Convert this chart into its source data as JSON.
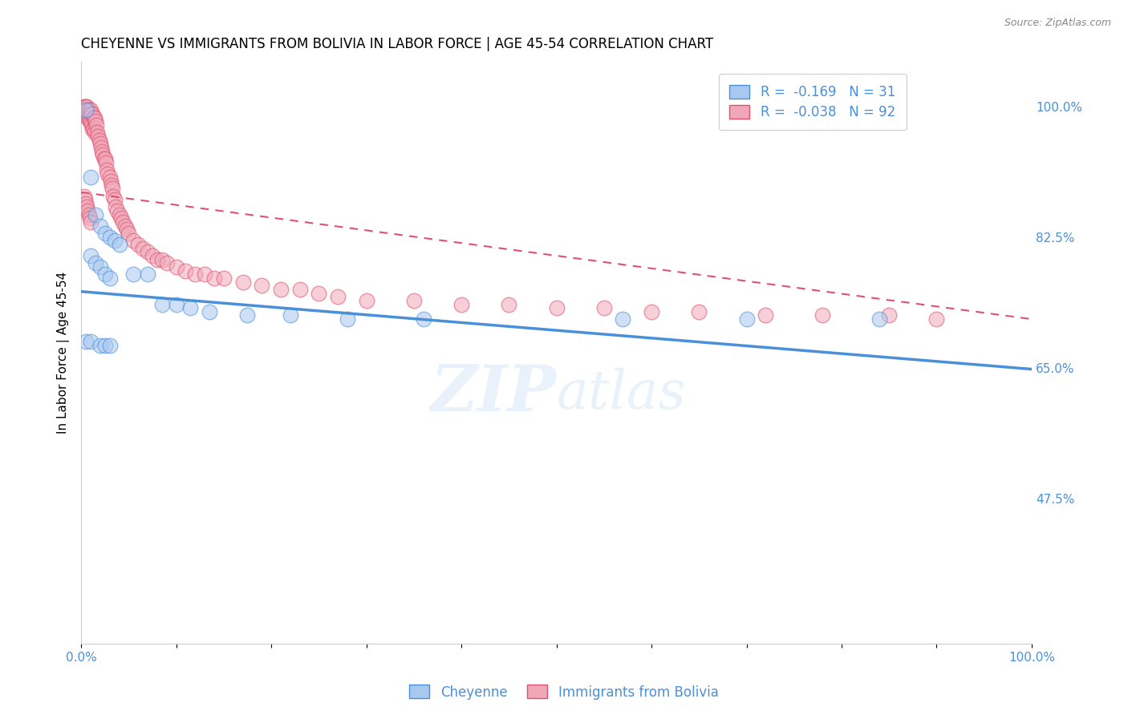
{
  "title": "CHEYENNE VS IMMIGRANTS FROM BOLIVIA IN LABOR FORCE | AGE 45-54 CORRELATION CHART",
  "source": "Source: ZipAtlas.com",
  "ylabel": "In Labor Force | Age 45-54",
  "ytick_labels": [
    "100.0%",
    "82.5%",
    "65.0%",
    "47.5%"
  ],
  "ytick_values": [
    1.0,
    0.825,
    0.65,
    0.475
  ],
  "xmin": 0.0,
  "xmax": 1.0,
  "ymin": 0.28,
  "ymax": 1.06,
  "cheyenne_R": "-0.169",
  "cheyenne_N": "31",
  "bolivia_R": "-0.038",
  "bolivia_N": "92",
  "cheyenne_color": "#a8c8f0",
  "cheyenne_line_color": "#4a90d9",
  "bolivia_color": "#f0a8b8",
  "bolivia_line_color": "#e05070",
  "legend_text_color": "#4a90d9",
  "watermark_line1": "ZIP",
  "watermark_line2": "atlas",
  "cheyenne_line_x0": 0.0,
  "cheyenne_line_y0": 0.752,
  "cheyenne_line_x1": 1.0,
  "cheyenne_line_y1": 0.648,
  "bolivia_line_x0": 0.0,
  "bolivia_line_y0": 0.885,
  "bolivia_line_x1": 1.0,
  "bolivia_line_y1": 0.715,
  "cheyenne_x": [
    0.005,
    0.01,
    0.015,
    0.02,
    0.025,
    0.03,
    0.035,
    0.04,
    0.01,
    0.015,
    0.02,
    0.025,
    0.03,
    0.055,
    0.07,
    0.085,
    0.1,
    0.115,
    0.135,
    0.175,
    0.22,
    0.28,
    0.36,
    0.57,
    0.7,
    0.84,
    0.005,
    0.01,
    0.02,
    0.025,
    0.03
  ],
  "cheyenne_y": [
    0.995,
    0.905,
    0.855,
    0.84,
    0.83,
    0.825,
    0.82,
    0.815,
    0.8,
    0.79,
    0.785,
    0.775,
    0.77,
    0.775,
    0.775,
    0.735,
    0.735,
    0.73,
    0.725,
    0.72,
    0.72,
    0.715,
    0.715,
    0.715,
    0.715,
    0.715,
    0.685,
    0.685,
    0.68,
    0.68,
    0.68
  ],
  "bolivia_x": [
    0.003,
    0.003,
    0.004,
    0.004,
    0.005,
    0.005,
    0.006,
    0.006,
    0.007,
    0.007,
    0.008,
    0.008,
    0.009,
    0.009,
    0.01,
    0.01,
    0.011,
    0.011,
    0.012,
    0.012,
    0.013,
    0.013,
    0.014,
    0.014,
    0.015,
    0.016,
    0.017,
    0.018,
    0.019,
    0.02,
    0.021,
    0.022,
    0.023,
    0.024,
    0.025,
    0.026,
    0.027,
    0.028,
    0.03,
    0.031,
    0.032,
    0.033,
    0.034,
    0.035,
    0.036,
    0.038,
    0.04,
    0.042,
    0.044,
    0.046,
    0.048,
    0.05,
    0.055,
    0.06,
    0.065,
    0.07,
    0.075,
    0.08,
    0.085,
    0.09,
    0.1,
    0.11,
    0.12,
    0.13,
    0.14,
    0.15,
    0.17,
    0.19,
    0.21,
    0.23,
    0.25,
    0.27,
    0.3,
    0.35,
    0.4,
    0.45,
    0.5,
    0.55,
    0.6,
    0.65,
    0.72,
    0.78,
    0.85,
    0.9,
    0.003,
    0.004,
    0.005,
    0.006,
    0.007,
    0.008,
    0.009,
    0.01
  ],
  "bolivia_y": [
    1.0,
    0.995,
    1.0,
    0.995,
    1.0,
    0.99,
    1.0,
    0.99,
    0.995,
    0.985,
    0.995,
    0.985,
    0.99,
    0.98,
    0.995,
    0.98,
    0.99,
    0.975,
    0.99,
    0.97,
    0.985,
    0.97,
    0.985,
    0.965,
    0.98,
    0.975,
    0.965,
    0.96,
    0.955,
    0.95,
    0.945,
    0.94,
    0.935,
    0.93,
    0.93,
    0.925,
    0.915,
    0.91,
    0.905,
    0.9,
    0.895,
    0.89,
    0.88,
    0.875,
    0.865,
    0.86,
    0.855,
    0.85,
    0.845,
    0.84,
    0.835,
    0.83,
    0.82,
    0.815,
    0.81,
    0.805,
    0.8,
    0.795,
    0.795,
    0.79,
    0.785,
    0.78,
    0.775,
    0.775,
    0.77,
    0.77,
    0.765,
    0.76,
    0.755,
    0.755,
    0.75,
    0.745,
    0.74,
    0.74,
    0.735,
    0.735,
    0.73,
    0.73,
    0.725,
    0.725,
    0.72,
    0.72,
    0.72,
    0.715,
    0.88,
    0.875,
    0.87,
    0.865,
    0.86,
    0.855,
    0.85,
    0.845
  ]
}
